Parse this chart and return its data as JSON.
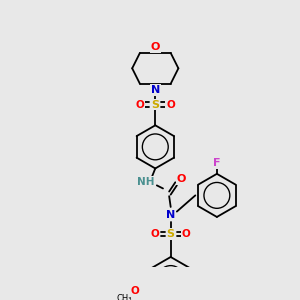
{
  "background_color": "#e8e8e8",
  "bond_color": "#000000",
  "atom_colors": {
    "O": "#ff0000",
    "N": "#0000cc",
    "S": "#ccaa00",
    "F": "#cc44cc",
    "C": "#000000",
    "H": "#4a9090"
  },
  "figsize": [
    3.0,
    3.0
  ],
  "dpi": 100,
  "lw": 1.3
}
